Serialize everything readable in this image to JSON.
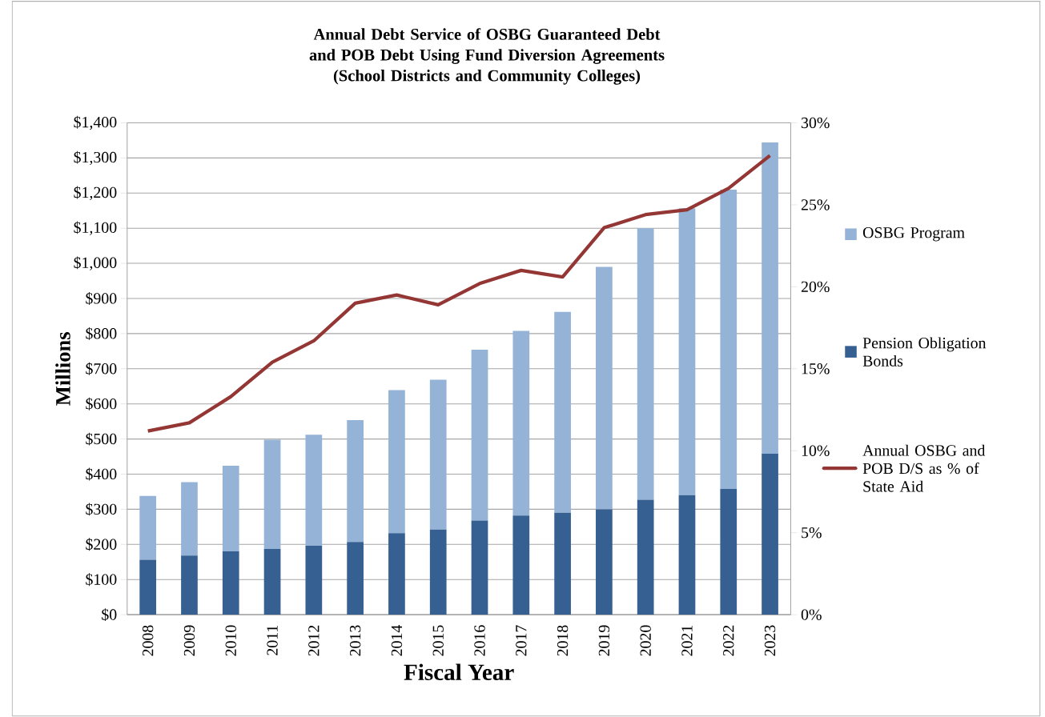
{
  "chart_data": {
    "type": "bar",
    "title": "Annual Debt Service of OSBG Guaranteed Debt and POB Debt Using Fund Diversion Agreements",
    "subtitle": "(School Districts and Community Colleges)",
    "xlabel": "Fiscal Year",
    "ylabel": "Millions",
    "categories": [
      "2008",
      "2009",
      "2010",
      "2011",
      "2012",
      "2013",
      "2014",
      "2015",
      "2016",
      "2017",
      "2018",
      "2019",
      "2020",
      "2021",
      "2022",
      "2023"
    ],
    "stacked": true,
    "series": [
      {
        "name": "Pension Obligation Bonds",
        "type": "bar",
        "color": "#376092",
        "values": [
          156,
          168,
          180,
          187,
          196,
          207,
          232,
          242,
          268,
          282,
          290,
          300,
          327,
          340,
          358,
          458
        ]
      },
      {
        "name": "OSBG Program",
        "type": "bar",
        "color": "#95b3d7",
        "values": [
          182,
          209,
          244,
          311,
          316,
          347,
          407,
          427,
          486,
          526,
          572,
          690,
          773,
          817,
          852,
          886
        ]
      },
      {
        "name": "Annual OSBG and POB D/S as % of State Aid",
        "type": "line",
        "axis": "y2",
        "color": "#943634",
        "values": [
          11.2,
          11.7,
          13.3,
          15.4,
          16.7,
          19.0,
          19.5,
          18.9,
          20.2,
          21.0,
          20.6,
          23.6,
          24.4,
          24.7,
          26.0,
          28.0
        ]
      }
    ],
    "ylim": [
      0,
      1400
    ],
    "yticks": [
      {
        "value": 0,
        "label": "$0"
      },
      {
        "value": 100,
        "label": "$100"
      },
      {
        "value": 200,
        "label": "$200"
      },
      {
        "value": 300,
        "label": "$300"
      },
      {
        "value": 400,
        "label": "$400"
      },
      {
        "value": 500,
        "label": "$500"
      },
      {
        "value": 600,
        "label": "$600"
      },
      {
        "value": 700,
        "label": "$700"
      },
      {
        "value": 800,
        "label": "$800"
      },
      {
        "value": 900,
        "label": "$900"
      },
      {
        "value": 1000,
        "label": "$1,000"
      },
      {
        "value": 1100,
        "label": "$1,100"
      },
      {
        "value": 1200,
        "label": "$1,200"
      },
      {
        "value": 1300,
        "label": "$1,300"
      },
      {
        "value": 1400,
        "label": "$1,400"
      }
    ],
    "y2lim": [
      0,
      30
    ],
    "y2ticks": [
      {
        "value": 0,
        "label": "0%"
      },
      {
        "value": 5,
        "label": "5%"
      },
      {
        "value": 10,
        "label": "10%"
      },
      {
        "value": 15,
        "label": "15%"
      },
      {
        "value": 20,
        "label": "20%"
      },
      {
        "value": 25,
        "label": "25%"
      },
      {
        "value": 30,
        "label": "30%"
      }
    ],
    "grid": "y",
    "legend": "right"
  }
}
